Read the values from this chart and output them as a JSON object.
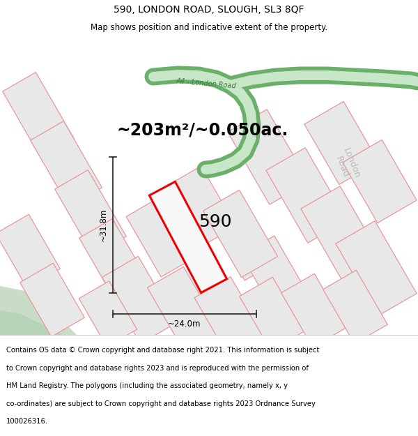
{
  "title": "590, LONDON ROAD, SLOUGH, SL3 8QF",
  "subtitle": "Map shows position and indicative extent of the property.",
  "area_text": "~203m²/~0.050ac.",
  "label_590": "590",
  "dim_vertical": "~31.8m",
  "dim_horizontal": "~24.0m",
  "footer_lines": [
    "Contains OS data © Crown copyright and database right 2021. This information is subject",
    "to Crown copyright and database rights 2023 and is reproduced with the permission of",
    "HM Land Registry. The polygons (including the associated geometry, namely x, y",
    "co-ordinates) are subject to Crown copyright and database rights 2023 Ordnance Survey",
    "100026316."
  ],
  "bg_map_color": "#f0f0f0",
  "road_green_dark": "#6ab06a",
  "road_green_light": "#c8e6c8",
  "road_label_color": "#3a7a3a",
  "london_road_label_color": "#bbbbbb",
  "plot_outline_color": "#ee0000",
  "plot_fill_color": "#f8f8f8",
  "parcel_fill": "#e8e8e8",
  "parcel_line_color": "#e89898",
  "dim_line_color": "#222222",
  "green_corner_color": "#c8dcc8",
  "title_fontsize": 10,
  "subtitle_fontsize": 8.5,
  "area_fontsize": 17,
  "label_fontsize": 18,
  "dim_fontsize": 8.5,
  "road_label_fontsize": 7,
  "london_road_fontsize": 9,
  "footer_fontsize": 7.2
}
